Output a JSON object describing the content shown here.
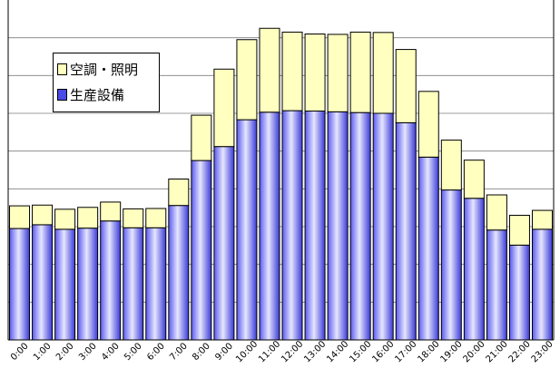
{
  "chart_data": {
    "type": "bar",
    "stacked": true,
    "title": "",
    "xlabel": "",
    "ylabel": "",
    "grid": true,
    "y_tick_labels_shown": false,
    "legend_position": "top-left",
    "categories": [
      "0:00",
      "1:00",
      "2:00",
      "3:00",
      "4:00",
      "5:00",
      "6:00",
      "7:00",
      "8:00",
      "9:00",
      "10:00",
      "11:00",
      "12:00",
      "13:00",
      "14:00",
      "15:00",
      "16:00",
      "17:00",
      "18:00",
      "19:00",
      "20:00",
      "21:00",
      "22:00",
      "23:00"
    ],
    "series": [
      {
        "name": "生産設備",
        "color": "#4a4ae8",
        "values": [
          29.5,
          30.5,
          29.3,
          29.6,
          31.5,
          29.7,
          29.7,
          35.6,
          47.5,
          51.2,
          58.3,
          60.3,
          60.7,
          60.6,
          60.4,
          60.2,
          60.0,
          57.5,
          48.4,
          39.7,
          37.5,
          29.1,
          25.1,
          29.3
        ]
      },
      {
        "name": "空調・照明",
        "color": "#ffffc0",
        "values": [
          6.0,
          5.2,
          5.3,
          5.5,
          5.0,
          5.0,
          5.1,
          7.0,
          12.0,
          20.5,
          21.2,
          22.2,
          20.8,
          20.4,
          20.5,
          21.3,
          21.4,
          19.4,
          17.4,
          13.2,
          10.1,
          9.3,
          7.9,
          5.0
        ]
      }
    ],
    "ylim": [
      0,
      90
    ]
  }
}
